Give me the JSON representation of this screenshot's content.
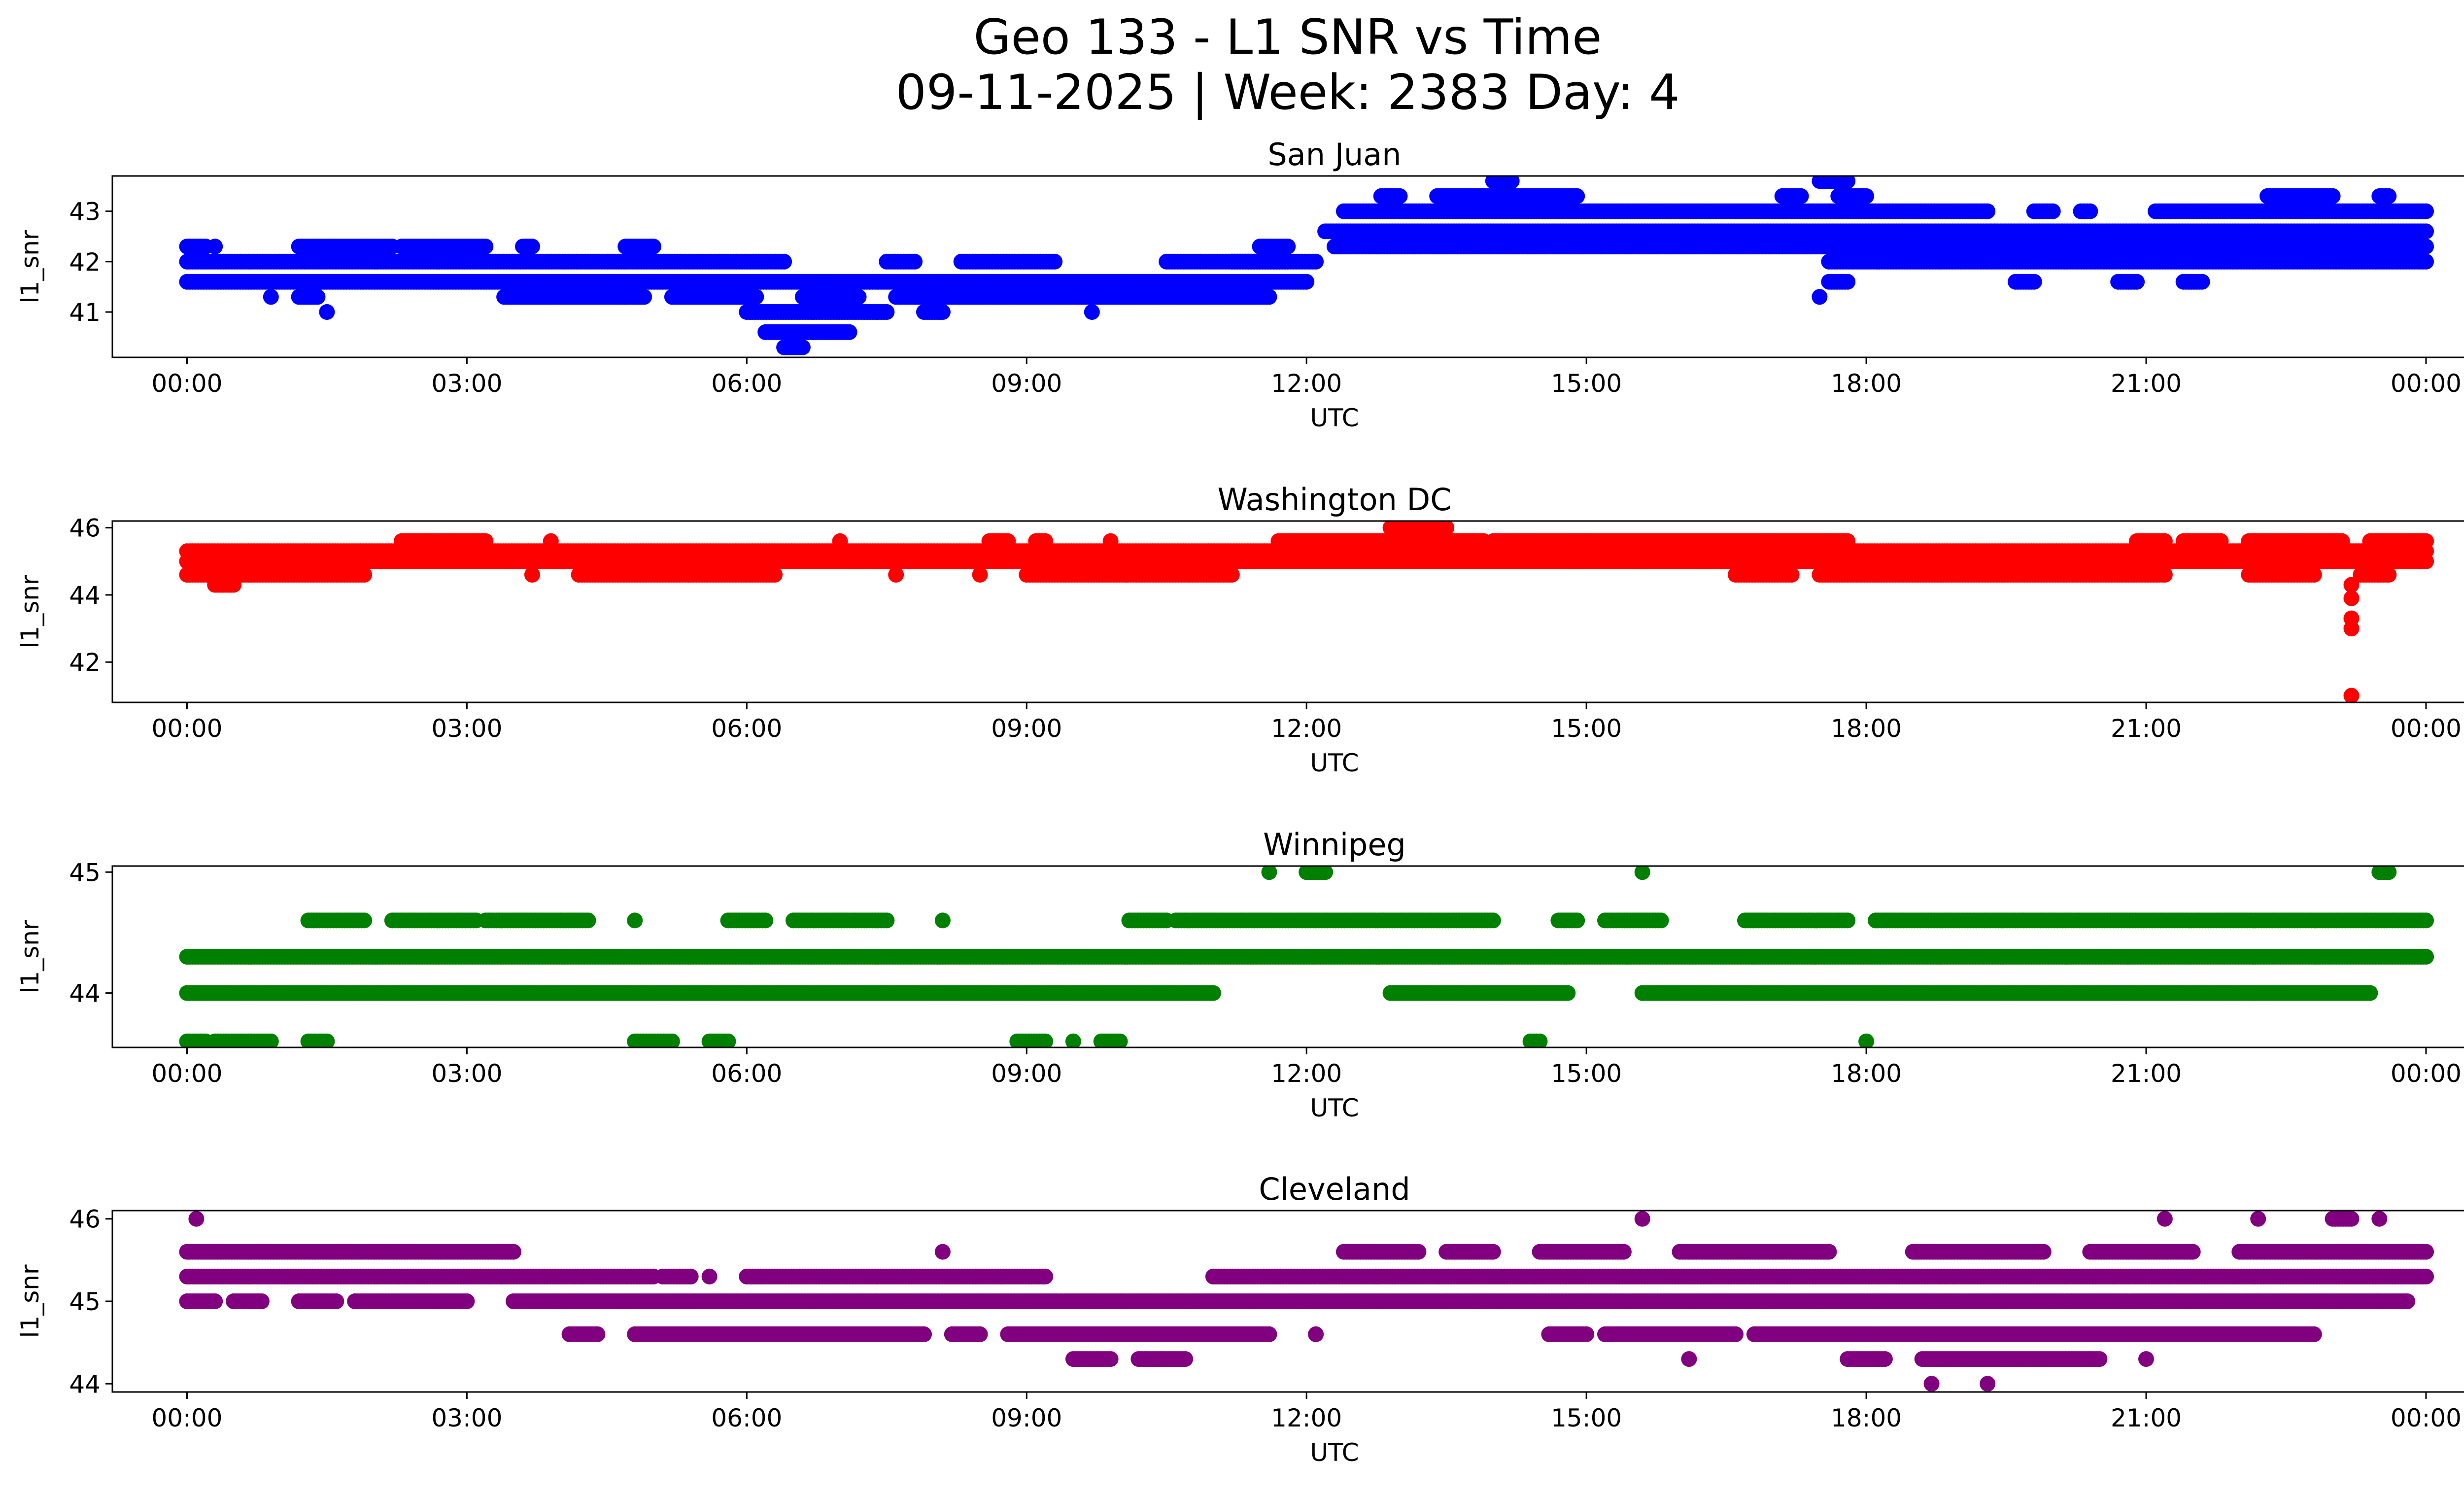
{
  "figure": {
    "title_line1": "Geo 133 - L1 SNR vs Time",
    "title_line2": "09-11-2025 | Week: 2383 Day: 4"
  },
  "chart_data": [
    {
      "type": "scatter",
      "title": "San Juan",
      "xlabel": "UTC",
      "ylabel": "l1_snr",
      "color": "#0000ff",
      "xlim": [
        -0.8,
        25.4
      ],
      "ylim": [
        40.1,
        43.7
      ],
      "yticks": [
        41,
        42,
        43
      ],
      "xtick_labels": [
        "00:00",
        "03:00",
        "06:00",
        "09:00",
        "12:00",
        "15:00",
        "18:00",
        "21:00",
        "00:00"
      ],
      "bands": [
        {
          "level": 42.3,
          "x": [
            [
              0.0,
              0.2
            ],
            [
              0.3,
              0.3
            ],
            [
              2.3,
              3.2
            ],
            [
              3.6,
              3.7
            ],
            [
              4.7,
              5.0
            ],
            [
              1.2,
              2.2
            ],
            [
              11.5,
              11.8
            ]
          ]
        },
        {
          "level": 42.0,
          "x": [
            [
              0.0,
              6.4
            ],
            [
              7.5,
              7.8
            ],
            [
              8.3,
              9.3
            ],
            [
              10.5,
              11.8
            ],
            [
              11.2,
              12.1
            ]
          ]
        },
        {
          "level": 41.6,
          "x": [
            [
              0.0,
              12.0
            ]
          ]
        },
        {
          "level": 41.3,
          "x": [
            [
              0.9,
              0.9
            ],
            [
              1.2,
              1.4
            ],
            [
              3.4,
              4.9
            ],
            [
              5.2,
              6.1
            ],
            [
              6.6,
              7.2
            ],
            [
              7.6,
              11.6
            ]
          ]
        },
        {
          "level": 41.0,
          "x": [
            [
              6.0,
              7.5
            ],
            [
              7.9,
              8.1
            ],
            [
              1.5,
              1.5
            ],
            [
              9.7,
              9.7
            ]
          ]
        },
        {
          "level": 40.6,
          "x": [
            [
              6.2,
              7.1
            ]
          ]
        },
        {
          "level": 40.3,
          "x": [
            [
              6.4,
              6.6
            ]
          ]
        },
        {
          "level": 42.6,
          "x": [
            [
              12.2,
              24.0
            ]
          ]
        },
        {
          "level": 42.3,
          "x": [
            [
              12.3,
              24.0
            ]
          ]
        },
        {
          "level": 43.0,
          "x": [
            [
              12.4,
              19.3
            ],
            [
              19.8,
              20.0
            ],
            [
              20.3,
              20.4
            ],
            [
              21.1,
              24.0
            ]
          ]
        },
        {
          "level": 42.0,
          "x": [
            [
              17.6,
              24.0
            ]
          ]
        },
        {
          "level": 41.6,
          "x": [
            [
              17.6,
              17.8
            ],
            [
              19.6,
              19.8
            ],
            [
              20.7,
              20.9
            ],
            [
              21.4,
              21.6
            ]
          ]
        },
        {
          "level": 43.3,
          "x": [
            [
              12.8,
              13.0
            ],
            [
              13.4,
              14.9
            ],
            [
              17.1,
              17.3
            ],
            [
              17.7,
              18.0
            ],
            [
              22.3,
              23.0
            ],
            [
              23.5,
              23.6
            ]
          ]
        },
        {
          "level": 43.6,
          "x": [
            [
              14.0,
              14.2
            ],
            [
              17.5,
              17.8
            ]
          ]
        },
        {
          "level": 41.3,
          "x": [
            [
              17.5,
              17.5
            ]
          ]
        }
      ]
    },
    {
      "type": "scatter",
      "title": "Washington DC",
      "xlabel": "UTC",
      "ylabel": "l1_snr",
      "color": "#ff0000",
      "xlim": [
        -0.8,
        25.4
      ],
      "ylim": [
        40.8,
        46.2
      ],
      "yticks": [
        42,
        44,
        46
      ],
      "xtick_labels": [
        "00:00",
        "03:00",
        "06:00",
        "09:00",
        "12:00",
        "15:00",
        "18:00",
        "21:00",
        "00:00"
      ],
      "bands": [
        {
          "level": 45.3,
          "x": [
            [
              0.0,
              24.0
            ]
          ]
        },
        {
          "level": 45.0,
          "x": [
            [
              0.0,
              24.0
            ]
          ]
        },
        {
          "level": 44.6,
          "x": [
            [
              0.0,
              1.9
            ],
            [
              3.7,
              3.7
            ],
            [
              4.2,
              6.3
            ],
            [
              8.5,
              8.5
            ],
            [
              9.0,
              11.2
            ],
            [
              7.6,
              7.6
            ],
            [
              17.5,
              21.2
            ],
            [
              16.6,
              17.2
            ],
            [
              22.1,
              22.8
            ],
            [
              23.3,
              23.6
            ]
          ]
        },
        {
          "level": 44.3,
          "x": [
            [
              0.3,
              0.5
            ]
          ]
        },
        {
          "level": 45.6,
          "x": [
            [
              2.3,
              3.2
            ],
            [
              3.9,
              3.9
            ],
            [
              7.0,
              7.0
            ],
            [
              8.6,
              8.8
            ],
            [
              9.1,
              9.2
            ],
            [
              9.9,
              9.9
            ],
            [
              11.7,
              13.9
            ],
            [
              14.0,
              17.8
            ],
            [
              20.9,
              21.2
            ],
            [
              21.4,
              21.8
            ],
            [
              22.1,
              23.1
            ],
            [
              23.4,
              24.0
            ]
          ]
        },
        {
          "level": 46.0,
          "x": [
            [
              12.9,
              13.5
            ]
          ]
        },
        {
          "level": 44.3,
          "x": [
            [
              23.2,
              23.2
            ]
          ]
        },
        {
          "level": 43.9,
          "x": [
            [
              23.2,
              23.2
            ]
          ]
        },
        {
          "level": 43.3,
          "x": [
            [
              23.2,
              23.2
            ]
          ]
        },
        {
          "level": 43.0,
          "x": [
            [
              23.2,
              23.2
            ]
          ]
        },
        {
          "level": 41.0,
          "x": [
            [
              23.2,
              23.2
            ]
          ]
        }
      ]
    },
    {
      "type": "scatter",
      "title": "Winnipeg",
      "xlabel": "UTC",
      "ylabel": "l1_snr",
      "color": "#008000",
      "xlim": [
        -0.8,
        25.4
      ],
      "ylim": [
        43.55,
        45.05
      ],
      "yticks": [
        44,
        45
      ],
      "xtick_labels": [
        "00:00",
        "03:00",
        "06:00",
        "09:00",
        "12:00",
        "15:00",
        "18:00",
        "21:00",
        "00:00"
      ],
      "bands": [
        {
          "level": 44.3,
          "x": [
            [
              0.0,
              24.0
            ]
          ]
        },
        {
          "level": 44.0,
          "x": [
            [
              0.0,
              11.0
            ],
            [
              12.9,
              14.8
            ],
            [
              15.6,
              23.4
            ]
          ]
        },
        {
          "level": 44.6,
          "x": [
            [
              1.3,
              1.9
            ],
            [
              2.2,
              3.1
            ],
            [
              3.2,
              4.3
            ],
            [
              4.8,
              4.8
            ],
            [
              5.8,
              6.2
            ],
            [
              6.5,
              7.5
            ],
            [
              8.1,
              8.1
            ],
            [
              10.1,
              10.5
            ],
            [
              10.6,
              14.0
            ],
            [
              14.7,
              14.9
            ],
            [
              15.2,
              15.8
            ],
            [
              16.7,
              17.8
            ],
            [
              18.1,
              24.0
            ]
          ]
        },
        {
          "level": 43.6,
          "x": [
            [
              0.0,
              0.2
            ],
            [
              0.3,
              0.9
            ],
            [
              1.3,
              1.5
            ],
            [
              4.8,
              5.2
            ],
            [
              5.6,
              5.8
            ],
            [
              8.9,
              9.2
            ],
            [
              9.5,
              9.5
            ],
            [
              9.8,
              10.0
            ],
            [
              14.4,
              14.5
            ],
            [
              18.0,
              18.0
            ]
          ]
        },
        {
          "level": 45.0,
          "x": [
            [
              11.6,
              11.6
            ],
            [
              12.0,
              12.2
            ],
            [
              15.6,
              15.6
            ],
            [
              23.5,
              23.6
            ]
          ]
        }
      ]
    },
    {
      "type": "scatter",
      "title": "Cleveland",
      "xlabel": "UTC",
      "ylabel": "l1_snr",
      "color": "#800080",
      "xlim": [
        -0.8,
        25.4
      ],
      "ylim": [
        43.9,
        46.1
      ],
      "yticks": [
        44,
        45,
        46
      ],
      "xtick_labels": [
        "00:00",
        "03:00",
        "06:00",
        "09:00",
        "12:00",
        "15:00",
        "18:00",
        "21:00",
        "00:00"
      ],
      "bands": [
        {
          "level": 45.3,
          "x": [
            [
              0.0,
              5.0
            ],
            [
              5.1,
              5.4
            ],
            [
              5.6,
              5.6
            ],
            [
              6.0,
              9.2
            ],
            [
              11.0,
              24.0
            ]
          ]
        },
        {
          "level": 45.6,
          "x": [
            [
              0.0,
              3.5
            ],
            [
              8.1,
              8.1
            ],
            [
              12.4,
              13.2
            ],
            [
              13.5,
              14.0
            ],
            [
              14.5,
              15.4
            ],
            [
              16.0,
              17.6
            ],
            [
              18.5,
              19.9
            ],
            [
              20.4,
              21.5
            ],
            [
              22.0,
              24.0
            ]
          ]
        },
        {
          "level": 45.0,
          "x": [
            [
              0.0,
              0.3
            ],
            [
              0.5,
              0.8
            ],
            [
              1.2,
              1.6
            ],
            [
              1.8,
              3.0
            ],
            [
              3.5,
              23.8
            ]
          ]
        },
        {
          "level": 44.6,
          "x": [
            [
              4.1,
              4.4
            ],
            [
              4.8,
              7.9
            ],
            [
              8.2,
              8.5
            ],
            [
              8.8,
              11.6
            ],
            [
              12.1,
              12.1
            ],
            [
              14.6,
              15.0
            ],
            [
              15.2,
              16.6
            ],
            [
              16.8,
              22.8
            ]
          ]
        },
        {
          "level": 44.3,
          "x": [
            [
              9.5,
              9.9
            ],
            [
              10.2,
              10.7
            ],
            [
              16.1,
              16.1
            ],
            [
              17.8,
              18.2
            ],
            [
              18.6,
              20.5
            ],
            [
              21.0,
              21.0
            ]
          ]
        },
        {
          "level": 44.0,
          "x": [
            [
              18.7,
              18.7
            ],
            [
              19.3,
              19.3
            ]
          ]
        },
        {
          "level": 46.0,
          "x": [
            [
              0.1,
              0.1
            ],
            [
              15.6,
              15.6
            ],
            [
              21.2,
              21.2
            ],
            [
              22.2,
              22.2
            ],
            [
              23.0,
              23.2
            ],
            [
              23.5,
              23.5
            ]
          ]
        }
      ]
    }
  ]
}
